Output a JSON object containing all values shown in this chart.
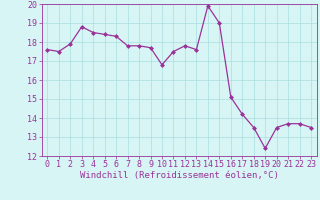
{
  "x": [
    0,
    1,
    2,
    3,
    4,
    5,
    6,
    7,
    8,
    9,
    10,
    11,
    12,
    13,
    14,
    15,
    16,
    17,
    18,
    19,
    20,
    21,
    22,
    23
  ],
  "y": [
    17.6,
    17.5,
    17.9,
    18.8,
    18.5,
    18.4,
    18.3,
    17.8,
    17.8,
    17.7,
    16.8,
    17.5,
    17.8,
    17.6,
    19.9,
    19.0,
    15.1,
    14.2,
    13.5,
    12.4,
    13.5,
    13.7,
    13.7,
    13.5
  ],
  "line_color": "#993399",
  "marker": "D",
  "marker_size": 2,
  "bg_color": "#d8f5f5",
  "grid_color": "#aadddd",
  "xlabel": "Windchill (Refroidissement éolien,°C)",
  "ylim": [
    12,
    20
  ],
  "xlim_min": -0.5,
  "xlim_max": 23.5,
  "yticks": [
    12,
    13,
    14,
    15,
    16,
    17,
    18,
    19,
    20
  ],
  "xticks": [
    0,
    1,
    2,
    3,
    4,
    5,
    6,
    7,
    8,
    9,
    10,
    11,
    12,
    13,
    14,
    15,
    16,
    17,
    18,
    19,
    20,
    21,
    22,
    23
  ],
  "label_fontsize": 6.5,
  "tick_fontsize": 6
}
